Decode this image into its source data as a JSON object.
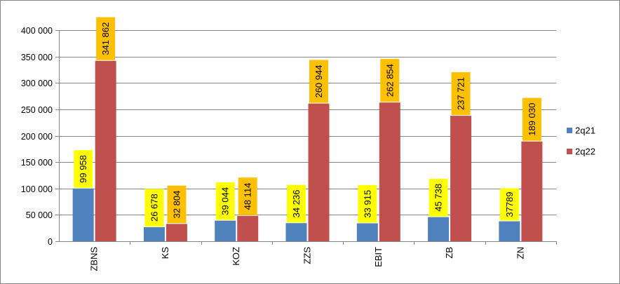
{
  "chart_data": {
    "type": "bar",
    "categories": [
      "ZBNS",
      "KS",
      "KOZ",
      "ZZS",
      "EBIT",
      "ZB",
      "ZN"
    ],
    "series": [
      {
        "name": "2q21",
        "color": "#4F81BD",
        "label_bg": "#FFFF00",
        "values": [
          99958,
          26678,
          39044,
          34236,
          33915,
          45738,
          37789
        ],
        "labels": [
          "99 958",
          "26 678",
          "39 044",
          "34 236",
          "33 915",
          "45 738",
          "37789"
        ]
      },
      {
        "name": "2q22",
        "color": "#C0504D",
        "label_bg": "#FFC000",
        "values": [
          341862,
          32804,
          48114,
          260944,
          262854,
          237721,
          189030
        ],
        "labels": [
          "341 862",
          "32 804",
          "48 114",
          "260 944",
          "262 854",
          "237 721",
          "189 030"
        ]
      }
    ],
    "ylim": [
      0,
      400000
    ],
    "yticks": [
      0,
      50000,
      100000,
      150000,
      200000,
      250000,
      300000,
      350000,
      400000
    ],
    "ytick_labels": [
      "0",
      "50 000",
      "100 000",
      "150 000",
      "200 000",
      "250 000",
      "300 000",
      "350 000",
      "400 000"
    ],
    "grid": true,
    "legend_position": "right",
    "title": "",
    "xlabel": "",
    "ylabel": ""
  }
}
